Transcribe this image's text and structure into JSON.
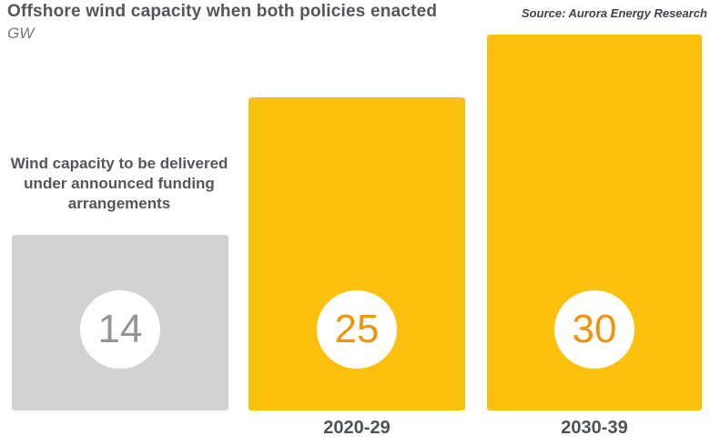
{
  "header": {
    "title": "Offshore wind capacity when both policies enacted",
    "unit_label": "GW",
    "source": "Source: Aurora Energy Research"
  },
  "annotation": {
    "text": "Wind capacity to be delivered under announced funding arrangements"
  },
  "chart_data": {
    "type": "bar",
    "title": "Offshore wind capacity when both policies enacted",
    "ylabel": "GW",
    "source": "Aurora Energy Research",
    "categories": [
      "Wind capacity to be delivered under announced funding arrangements",
      "2020-29",
      "2030-39"
    ],
    "values": [
      14,
      25,
      30
    ],
    "x_tick_labels": [
      "",
      "2020-29",
      "2030-39"
    ],
    "ylim": [
      0,
      30
    ],
    "grid": false,
    "legend": false,
    "bar_colors": [
      "#D2D2D3",
      "#FCC00E",
      "#FCC00E"
    ],
    "value_label_colors": [
      "#939598",
      "#F0930F",
      "#F0930F"
    ],
    "annotation_note": "Wind capacity to be delivered under announced funding arrangements"
  },
  "colors": {
    "background": "#ffffff",
    "bar_gray": "#D2D2D3",
    "bar_yellow": "#FCC00E",
    "value_gray": "#939598",
    "value_orange": "#F0930F",
    "title_text": "#55565A",
    "axis_label_text": "#4D5257"
  }
}
